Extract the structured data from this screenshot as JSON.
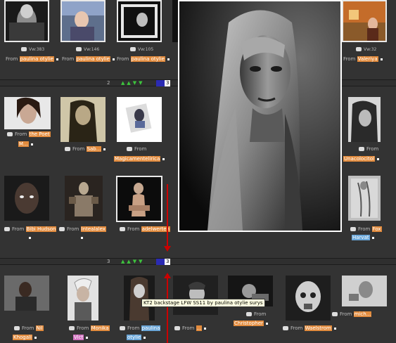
{
  "row1": {
    "views": [
      "Vw:383",
      "Vw:146",
      "Vw:105",
      "Vw:32"
    ],
    "captions": [
      {
        "from": "From",
        "name": "paulina otylie"
      },
      {
        "from": "From",
        "name": "paulina otylie"
      },
      {
        "from": "From",
        "name": "paulina otylie"
      },
      {
        "from": "From",
        "name": "Valeriya"
      }
    ]
  },
  "pager1": {
    "page": "2",
    "page_input": "3"
  },
  "row2": {
    "captions": [
      {
        "from": "From",
        "name": "the Poet",
        "extra": "M..."
      },
      {
        "from": "From",
        "name": "Sab..."
      },
      {
        "from": "From",
        "name": "Magicamentelirica",
        "prefix": ""
      },
      {
        "from": "From",
        "name": "Unacolocitol"
      }
    ]
  },
  "row3": {
    "captions": [
      {
        "from": "From",
        "name": "Bibi Hudson"
      },
      {
        "from": "From",
        "name": "Intealalex"
      },
      {
        "from": "From",
        "name": "adelwerten"
      },
      {
        "from": "From",
        "name": "Fox",
        "extra": "Harvat"
      }
    ]
  },
  "pager2": {
    "page": "3",
    "page_input": "3"
  },
  "row4": {
    "captions": [
      {
        "from": "From",
        "name": "Nil",
        "extra": "Khogali"
      },
      {
        "from": "From",
        "name": "Monika",
        "extra": "Vict"
      },
      {
        "from": "From",
        "name": "paulina",
        "extra": "otylie"
      },
      {
        "from": "From",
        "name": "..."
      },
      {
        "from": "From",
        "name": "Christopher"
      },
      {
        "from": "From",
        "name": "Waelstrom"
      },
      {
        "from": "From",
        "name": "mich..."
      }
    ]
  },
  "tooltip": "KT2 backstage LFW SS11 by paulina otylie surys",
  "colors": {
    "bg": "#333333",
    "accent": "#e28b3d",
    "arrow": "#3dc43d",
    "redline": "#cc0000"
  }
}
